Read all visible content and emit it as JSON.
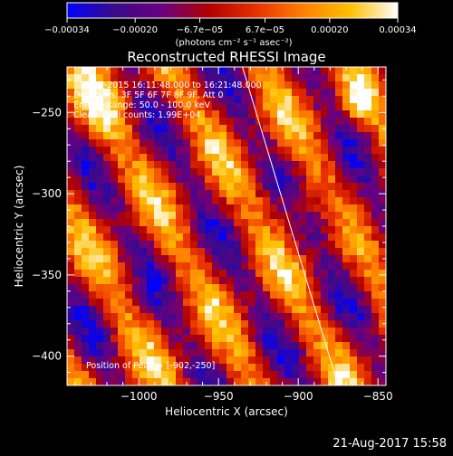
{
  "colorbar": {
    "ticks": [
      {
        "value": -0.00034,
        "label": "−0.00034"
      },
      {
        "value": -0.0002,
        "label": "−0.00020"
      },
      {
        "value": -6.7e-05,
        "label": "−6.7e−05"
      },
      {
        "value": 6.7e-05,
        "label": "6.7e−05"
      },
      {
        "value": 0.0002,
        "label": "0.00020"
      },
      {
        "value": 0.00034,
        "label": "0.00034"
      }
    ],
    "range": [
      -0.00034,
      0.00034
    ],
    "units_text": "(photons cm⁻² s⁻¹ asec⁻²)",
    "stops": [
      "#0000ff",
      "#3a0a8a",
      "#6a0080",
      "#b00000",
      "#e83000",
      "#ff8000",
      "#ffc000",
      "#ffffff"
    ]
  },
  "chart_data": {
    "type": "heatmap",
    "title": "Reconstructed RHESSI Image",
    "xlabel": "Heliocentric X (arcsec)",
    "ylabel": "Heliocentric Y (arcsec)",
    "xlim": [
      -1045,
      -845
    ],
    "ylim": [
      -418,
      -222
    ],
    "xticks": [
      {
        "value": -1000,
        "label": "−1000"
      },
      {
        "value": -950,
        "label": "−950"
      },
      {
        "value": -900,
        "label": "−900"
      },
      {
        "value": -850,
        "label": "−850"
      }
    ],
    "yticks": [
      {
        "value": -250,
        "label": "−250"
      },
      {
        "value": -300,
        "label": "−300"
      },
      {
        "value": -350,
        "label": "−350"
      },
      {
        "value": -400,
        "label": "−400"
      }
    ],
    "annotations": [
      "7-Mar-2015 16:11:48.000 to 16:21:48.000",
      "Detectors: 3F 5F 6F 7F 8F 9F, Att 0",
      "Energy Range: 50.0 - 100.0 keV",
      "Clean    Total counts: 1.99E+04"
    ],
    "peak_text": "Position of Peak = [-902,-250]",
    "limb_line": [
      [
        -935,
        -222
      ],
      [
        -875,
        -418
      ]
    ]
  },
  "timestamp": "21-Aug-2017 15:58"
}
